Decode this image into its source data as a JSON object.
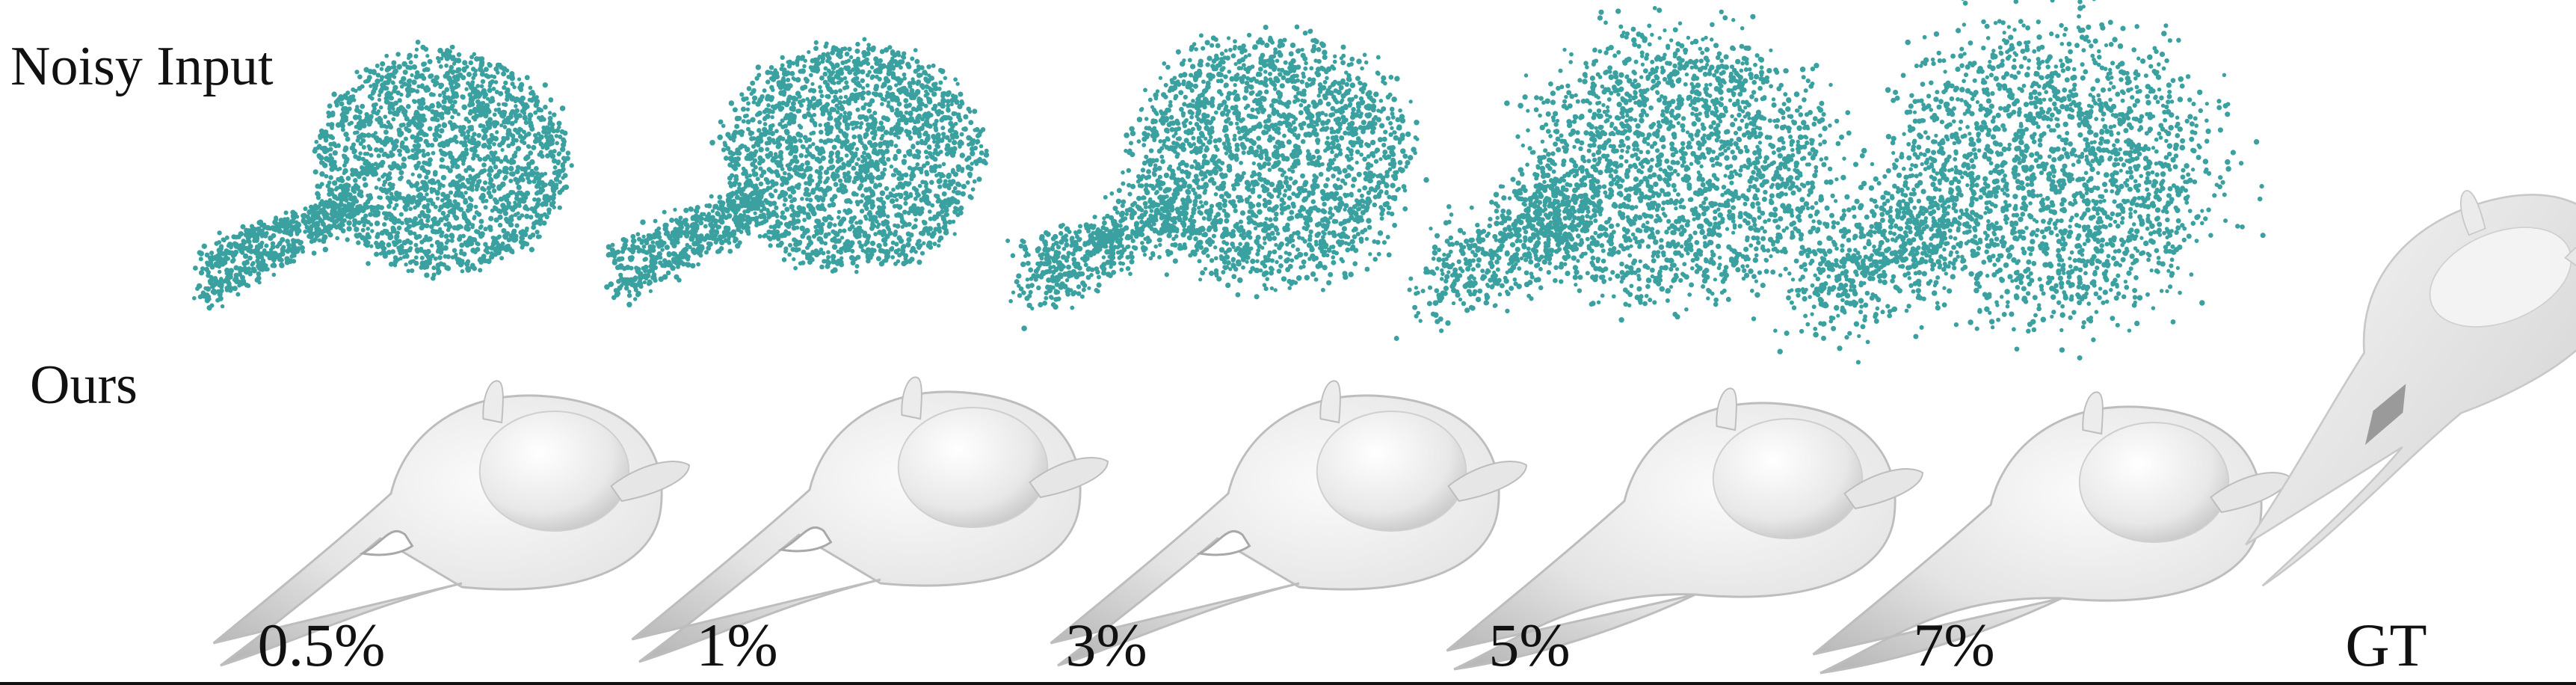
{
  "figure": {
    "row_labels": {
      "noisy": "Noisy Input",
      "ours": "Ours"
    },
    "columns": [
      {
        "label": "0.5%",
        "noise_level": 0.5
      },
      {
        "label": "1%",
        "noise_level": 1
      },
      {
        "label": "3%",
        "noise_level": 3
      },
      {
        "label": "5%",
        "noise_level": 5
      },
      {
        "label": "7%",
        "noise_level": 7
      },
      {
        "label": "GT",
        "noise_level": null
      }
    ],
    "colors": {
      "point": "#3aa0a0",
      "mesh_light": "#f4f4f4",
      "mesh_mid": "#d6d6d6",
      "mesh_dark": "#a8a8a8",
      "mesh_stroke": "#bdbdbd"
    }
  }
}
